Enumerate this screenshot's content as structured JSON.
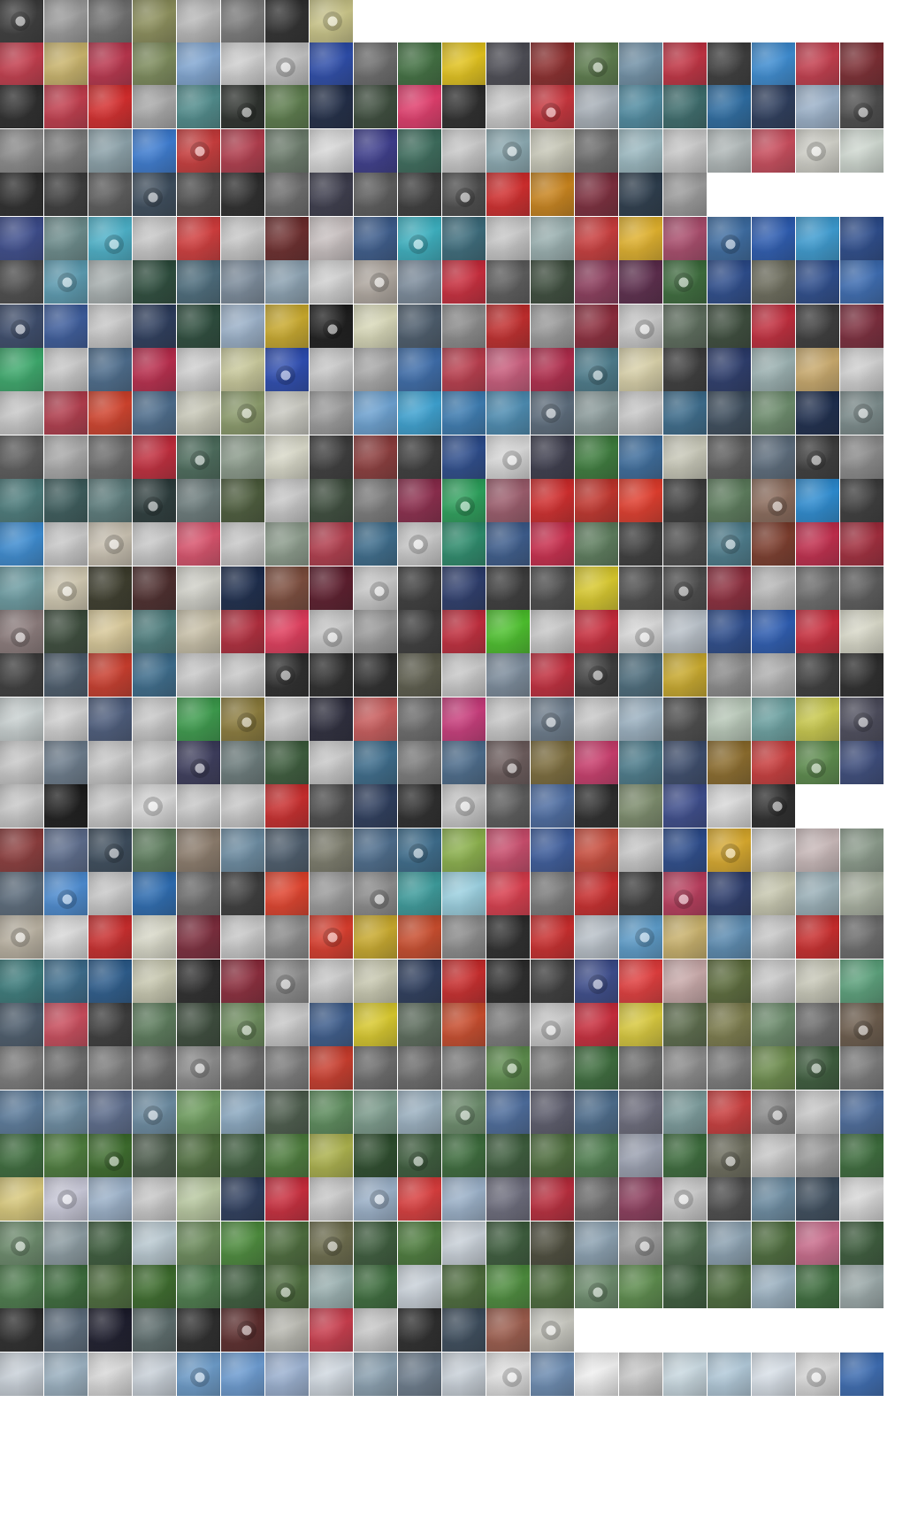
{
  "mosaic": {
    "description_free": true,
    "rows": [
      {
        "palette": [
          "#3a3a3a",
          "#9a9a9a",
          "#6e6e6e",
          "#8b8e5a",
          "#b9b9b9",
          "#7a7a7a",
          "#2d2d2d",
          "#c9c487"
        ]
      },
      {
        "palette": [
          "#c23a4a",
          "#c9b36a",
          "#b8324a",
          "#7b8a5a",
          "#7fa5d1",
          "#cfcfcf",
          "#bfbfbf",
          "#2a4aa8",
          "#6a6a6a",
          "#3f6e3f",
          "#e2c21a",
          "#4a4a52",
          "#8a2a2a",
          "#5a7a4a",
          "#6f8fa5",
          "#c03040",
          "#3a3a3a",
          "#3a8ad0",
          "#c23a4a",
          "#7a2a30"
        ]
      },
      {
        "palette": [
          "#2a2a2a",
          "#c03a4a",
          "#d42a2a",
          "#a8a8a8",
          "#4e8a8a",
          "#2a2e2a",
          "#5a7a4a",
          "#1e2a44",
          "#3a4a3a",
          "#e03a6a",
          "#2a2a2a",
          "#c9c9c9",
          "#c8323a",
          "#a8b0b8",
          "#4e8aa0",
          "#3a6a6a",
          "#2a6aa0",
          "#2a3a5a",
          "#9ab0c8",
          "#4a4a4a"
        ]
      },
      {
        "palette": [
          "#8a8a8a",
          "#7a7a7a",
          "#8aa0a8",
          "#3a7ad0",
          "#c83a3a",
          "#b03a4a",
          "#6a7a6a",
          "#d8d8d8",
          "#3a3a8a",
          "#3a6a5a",
          "#c8c8c8",
          "#8aa8b0",
          "#c8c8b8",
          "#6a6a6a",
          "#9ab8c0",
          "#c8c8c8",
          "#b0b8b8",
          "#c84a5a",
          "#d0d0c8",
          "#cfd8d0"
        ]
      },
      {
        "palette": [
          "#2a2a2a",
          "#3a3a3a",
          "#5a5a5a",
          "#3a4a5a",
          "#4a4a4a",
          "#2a2a2a",
          "#6a6a6a",
          "#3a3a4a",
          "#5a5a5a",
          "#3a3a3a",
          "#4a4a4a",
          "#d02a2a",
          "#c8821a",
          "#7a2a3a",
          "#2a3a4a",
          "#9a9a9a"
        ]
      },
      {
        "palette": [
          "#3a4a8a",
          "#6a8a8a",
          "#4ab0c8",
          "#c8c8c8",
          "#d03a3a",
          "#c8c8c8",
          "#6a2a2a",
          "#c8c0c0",
          "#3a5a8a",
          "#3ab0c0",
          "#3a6a7a",
          "#c8c8c8",
          "#9ab0b0",
          "#c83a3a",
          "#e0b02a",
          "#a84a6a",
          "#3a6aa0",
          "#2a5ab0",
          "#3a9ad0",
          "#2a4a8a"
        ]
      },
      {
        "palette": [
          "#4a4a4a",
          "#5a9ab0",
          "#a8b0b0",
          "#2a4a3a",
          "#4a6a7a",
          "#7a8a9a",
          "#8aa0b0",
          "#d0d0d0",
          "#b0a8a0",
          "#7a8a9a",
          "#c82a3a",
          "#5a5a5a",
          "#3a4a3a",
          "#8a3a5a",
          "#5a2a4a",
          "#3a6a3a",
          "#2a4a8a",
          "#6a6a5a",
          "#2a4a8a",
          "#3a6ab0"
        ]
      },
      {
        "palette": [
          "#3a4a6a",
          "#3a5a9a",
          "#c8c8c8",
          "#2a3a5a",
          "#2a4a3a",
          "#9ab0c8",
          "#c8a82a",
          "#1a1a1a",
          "#d8d8b8",
          "#4a5a6a",
          "#8a8a8a",
          "#c02a2a",
          "#9a9a9a",
          "#8a2a3a",
          "#c8c8c8",
          "#5a6a5a",
          "#3a4a3a",
          "#c02a3a",
          "#3a3a3a",
          "#7a2a3a"
        ]
      },
      {
        "palette": [
          "#3aa86a",
          "#c8c8c8",
          "#4a6a8a",
          "#b82a4a",
          "#d0d0d0",
          "#c8c89a",
          "#2a4ab0",
          "#c8c8c8",
          "#a8a8a8",
          "#3a6aa8",
          "#b83a4a",
          "#c85a7a",
          "#b02a4a",
          "#4a7a8a",
          "#d8d0a8",
          "#3a3a3a",
          "#2a3a6a",
          "#9ab0b0",
          "#c8a86a",
          "#d0d0d0"
        ]
      },
      {
        "palette": [
          "#c8c8c8",
          "#b03a4a",
          "#d0402a",
          "#4a6a8a",
          "#c8c8b8",
          "#8a9a6a",
          "#c8c8c0",
          "#9a9a9a",
          "#6aa0d0",
          "#3aa0d0",
          "#3a7ab0",
          "#4a8ab0",
          "#5a6a7a",
          "#8a9a9a",
          "#c8c8c8",
          "#3a6a8a",
          "#3a4a5a",
          "#6a8a6a",
          "#1a2a4a",
          "#7a8a8a"
        ]
      },
      {
        "palette": [
          "#5a5a5a",
          "#a8a8a8",
          "#6a6a6a",
          "#c02a3a",
          "#4a6a5a",
          "#8a9a8a",
          "#d8d8c8",
          "#3a3a3a",
          "#8a3a3a",
          "#3a3a3a",
          "#2a4a8a",
          "#d8d8d8",
          "#3a3a4a",
          "#3a7a3a",
          "#3a6a9a",
          "#c8c8b8",
          "#5a5a5a",
          "#5a6a7a",
          "#3a3a3a",
          "#8a8a8a"
        ]
      },
      {
        "palette": [
          "#4a7a7a",
          "#3a5a5a",
          "#5a7a7a",
          "#2a3a3a",
          "#6a7a7a",
          "#4a5a3a",
          "#c8c8c8",
          "#3a4a3a",
          "#7a7a7a",
          "#8a2a4a",
          "#2aa05a",
          "#9a5a6a",
          "#d02a2a",
          "#c0322a",
          "#e03a2a",
          "#3a3a3a",
          "#5a7a5a",
          "#8a6a5a",
          "#2a8ad0",
          "#3a3a3a"
        ]
      },
      {
        "palette": [
          "#3a8ad0",
          "#c8c8c8",
          "#c8c0b0",
          "#c8c8c8",
          "#d8506a",
          "#c8c8c8",
          "#8a9a8a",
          "#b03a4a",
          "#3a6a8a",
          "#c8c8c8",
          "#2a8a6a",
          "#3a5a8a",
          "#c82a4a",
          "#5a7a5a",
          "#3a3a3a",
          "#4a4a4a",
          "#4a7a8a",
          "#7a3a2a",
          "#c02a4a",
          "#a02a3a"
        ]
      },
      {
        "palette": [
          "#6a9aa0",
          "#d0c8b0",
          "#3a3a2a",
          "#4a2a2a",
          "#d0d0c8",
          "#1a2a4a",
          "#7a4a3a",
          "#5a1a2a",
          "#c8c8c8",
          "#3a3a3a",
          "#2a3a6a",
          "#3a3a3a",
          "#4a4a4a",
          "#d8c82a",
          "#4a4a4a",
          "#4a4a4a",
          "#8a2a3a",
          "#b8b8b8",
          "#6a6a6a",
          "#5a5a5a"
        ]
      },
      {
        "palette": [
          "#8a7a7a",
          "#3a4a3a",
          "#d8c898",
          "#4a7a7a",
          "#c8c0a8",
          "#b02a3a",
          "#e03a5a",
          "#c8c8c8",
          "#9a9a9a",
          "#3a3a3a",
          "#c02a3a",
          "#4ac02a",
          "#c8c8c8",
          "#c82a3a",
          "#d8d8d8",
          "#b8c0c8",
          "#2a4a8a",
          "#2a5ab0",
          "#c82a3a",
          "#d8d8c8"
        ]
      },
      {
        "palette": [
          "#3a3a3a",
          "#4a5a6a",
          "#c83a2a",
          "#3a6a8a",
          "#c8c8c8",
          "#c8c8c8",
          "#2a2a2a",
          "#2a2a2a",
          "#2a2a2a",
          "#5a5a4a",
          "#c8c8c8",
          "#7a8a9a",
          "#c02a3a",
          "#3a3a3a",
          "#4a6a7a",
          "#c8a82a",
          "#8a8a8a",
          "#b0b0b0",
          "#3a3a3a",
          "#2a2a2a"
        ]
      },
      {
        "palette": [
          "#c8d0d0",
          "#d0d0d0",
          "#4a5a7a",
          "#c8c8c8",
          "#3a9a4a",
          "#8a7a3a",
          "#c8c8c8",
          "#2a2a3a",
          "#c85a5a",
          "#6a6a6a",
          "#c83a7a",
          "#c8c8c8",
          "#6a7a8a",
          "#c8c8c8",
          "#9ab0c0",
          "#4a4a4a",
          "#b8c8b8",
          "#6aa0a0",
          "#c8c84a",
          "#4a4a5a"
        ]
      },
      {
        "palette": [
          "#c8c8c8",
          "#6a7a8a",
          "#c8c8c8",
          "#c8c8c8",
          "#3a3a5a",
          "#6a7a7a",
          "#3a5a3a",
          "#c8c8c8",
          "#3a6a8a",
          "#7a7a7a",
          "#4a6a8a",
          "#6a5a5a",
          "#7a6a3a",
          "#c83a6a",
          "#4a7a8a",
          "#3a4a6a",
          "#8a6a2a",
          "#c83a3a",
          "#5a8a4a",
          "#3a4a7a"
        ]
      },
      {
        "palette": [
          "#c8c8c8",
          "#1a1a1a",
          "#c8c8c8",
          "#d8d8d8",
          "#c8c8c8",
          "#c8c8c8",
          "#c82a2a",
          "#4a4a4a",
          "#2a3a5a",
          "#2a2a2a",
          "#c8c8c8",
          "#5a5a5a",
          "#4a6aa0",
          "#2a2a2a",
          "#7a8a6a",
          "#3a4a8a",
          "#d8d8d8",
          "#2a2a2a"
        ]
      },
      {
        "palette": [
          "#8a3a3a",
          "#5a6a8a",
          "#3a4a5a",
          "#5a7a5a",
          "#8a7a6a",
          "#6a8aa0",
          "#4a5a6a",
          "#7a7a6a",
          "#4a6a8a",
          "#3a6a8a",
          "#8ab04a",
          "#c84a6a",
          "#3a5a9a",
          "#c84a3a",
          "#c8c8c8",
          "#2a4a8a",
          "#d8a82a",
          "#c8c8c8",
          "#c8b8b8",
          "#8a9a8a"
        ]
      },
      {
        "palette": [
          "#5a6a7a",
          "#4a8ad0",
          "#c8c8c8",
          "#2a6ab0",
          "#6a6a6a",
          "#3a3a3a",
          "#e0402a",
          "#9a9a9a",
          "#8a8a8a",
          "#3a9a9a",
          "#9ad0e0",
          "#d83a4a",
          "#7a7a7a",
          "#c82a2a",
          "#3a3a3a",
          "#b83a5a",
          "#2a3a6a",
          "#c8c8b0",
          "#9ab0b8",
          "#a8b0a0"
        ]
      },
      {
        "palette": [
          "#b8b0a0",
          "#d8d8d8",
          "#c82a2a",
          "#d8d8c8",
          "#7a2a3a",
          "#c8c8c8",
          "#8a8a8a",
          "#d83a2a",
          "#c8a82a",
          "#c84a2a",
          "#8a8a8a",
          "#2a2a2a",
          "#c82a2a",
          "#b8c0c8",
          "#5a9ac8",
          "#c8b06a",
          "#5a8ab0",
          "#c8c8c8",
          "#c82a2a",
          "#6a6a6a"
        ]
      },
      {
        "palette": [
          "#3a7a7a",
          "#3a6a8a",
          "#2a5a8a",
          "#c8c8b0",
          "#2a2a2a",
          "#8a2a3a",
          "#8a8a8a",
          "#c8c8c8",
          "#c8c8b0",
          "#2a3a5a",
          "#c82a2a",
          "#2a2a2a",
          "#3a3a3a",
          "#3a4a8a",
          "#e03a3a",
          "#c8a8a8",
          "#5a6a3a",
          "#c8c8c8",
          "#c8c8b8",
          "#5aa07a"
        ]
      },
      {
        "palette": [
          "#4a5a6a",
          "#c84a5a",
          "#3a3a3a",
          "#5a7a5a",
          "#3a4a3a",
          "#6a8a5a",
          "#c8c8c8",
          "#3a5a8a",
          "#d8c82a",
          "#5a6a5a",
          "#c84a2a",
          "#7a7a7a",
          "#c8c8c8",
          "#c82a3a",
          "#d8c83a",
          "#5a6a4a",
          "#7a7a4a",
          "#6a8a6a",
          "#6a6a6a",
          "#6a5a4a"
        ]
      },
      {
        "palette": [
          "#7a7a7a",
          "#6a6a6a",
          "#7a7a7a",
          "#6a6a6a",
          "#8a8a8a",
          "#6a6a6a",
          "#7a7a7a",
          "#c83a2a",
          "#6a6a6a",
          "#6a6a6a",
          "#7a7a7a",
          "#5a8a4a",
          "#7a7a7a",
          "#3a6a3a",
          "#6a6a6a",
          "#8a8a8a",
          "#7a7a7a",
          "#6a8a4a",
          "#3a5a3a",
          "#7a7a7a"
        ]
      },
      {
        "palette": [
          "#5a7a9a",
          "#6a8aa0",
          "#5a6a8a",
          "#6a8aa0",
          "#6a9a5a",
          "#8aa8c0",
          "#4a5a4a",
          "#5a8a5a",
          "#7a9a8a",
          "#9ab0c0",
          "#6a8a6a",
          "#4a6a9a",
          "#5a5a6a",
          "#4a6a8a",
          "#6a6a7a",
          "#7a9a9a",
          "#c83a3a",
          "#8a8a8a",
          "#c8c8c8",
          "#4a6a9a"
        ]
      },
      {
        "palette": [
          "#3a6a3a",
          "#4a7a3a",
          "#3a6a2a",
          "#4a5a4a",
          "#4a6a3a",
          "#3a5a3a",
          "#4a7a3a",
          "#aab04a",
          "#2a4a2a",
          "#3a5a3a",
          "#3a6a3a",
          "#3a5a3a",
          "#4a6a3a",
          "#4a7a4a",
          "#9aa0b0",
          "#3a6a3a",
          "#6a6a5a",
          "#c8c8c8",
          "#9a9a9a",
          "#3a6a3a"
        ]
      },
      {
        "palette": [
          "#d8c87a",
          "#c8c8d8",
          "#9ab0c8",
          "#c8c8c8",
          "#b8c8a0",
          "#2a3a5a",
          "#c82a3a",
          "#c8c8c8",
          "#9ab0c8",
          "#d83a3a",
          "#9ab0c8",
          "#6a6a7a",
          "#b82a3a",
          "#6a6a6a",
          "#8a3a5a",
          "#c8c8c8",
          "#4a4a4a",
          "#6a8aa0",
          "#3a4a5a",
          "#d8d8d8"
        ]
      },
      {
        "palette": [
          "#6a8a6a",
          "#8a9aa0",
          "#3a5a3a",
          "#b8c8d0",
          "#6a8a5a",
          "#4a8a3a",
          "#4a6a3a",
          "#6a6a4a",
          "#3a5a3a",
          "#4a7a3a",
          "#c8d0d8",
          "#3a5a3a",
          "#4a4a3a",
          "#8aa0b0",
          "#9a9a9a",
          "#4a6a4a",
          "#8aa0b0",
          "#4a6a3a",
          "#c86a8a",
          "#3a5a3a"
        ]
      },
      {
        "palette": [
          "#4a7a4a",
          "#3a6a3a",
          "#4a6a3a",
          "#3a6a2a",
          "#4a7a4a",
          "#3a5a3a",
          "#4a6a3a",
          "#9ab0b0",
          "#3a6a3a",
          "#c8d0d8",
          "#4a6a3a",
          "#4a8a3a",
          "#4a6a3a",
          "#6a8a6a",
          "#5a8a4a",
          "#3a5a3a",
          "#4a6a3a",
          "#9ab0c0",
          "#3a6a3a",
          "#9aa8a8"
        ]
      },
      {
        "palette": [
          "#2a2a2a",
          "#5a6a7a",
          "#1a1a2a",
          "#5a6a6a",
          "#2a2a2a",
          "#5a2a2a",
          "#b8b8b0",
          "#c83a4a",
          "#c8c8c8",
          "#2a2a2a",
          "#3a4a5a",
          "#9a5a4a",
          "#c8c8c0"
        ]
      },
      {
        "palette": [
          "#c8d0d8",
          "#9ab0c0",
          "#d8d8d8",
          "#c8d0d8",
          "#6a9ac8",
          "#6a9ad0",
          "#9ab0d0",
          "#d0d8e0",
          "#8aa0b0",
          "#6a7a8a",
          "#c8d0d8",
          "#e0e0e0",
          "#6a8ab0",
          "#f0f0f0",
          "#c8c8c8",
          "#c8d8e0",
          "#b0c8d8",
          "#d8e0e8",
          "#d8d8d8",
          "#3a6ab0"
        ]
      }
    ]
  }
}
